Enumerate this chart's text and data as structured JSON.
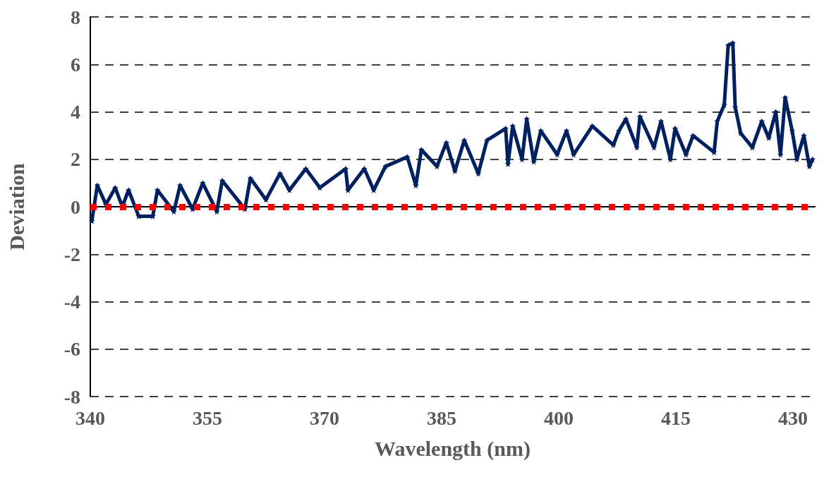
{
  "chart_data": {
    "type": "line",
    "xlabel": "Wavelength (nm)",
    "ylabel": "Deviation",
    "xlim": [
      340,
      432.8
    ],
    "xticks": [
      340,
      355,
      370,
      385,
      400,
      415,
      430
    ],
    "ylim": [
      -8,
      8
    ],
    "yticks": [
      -8,
      -6,
      -4,
      -2,
      0,
      2,
      4,
      6,
      8
    ],
    "grid": "y",
    "marker": "star",
    "line_style": "solid",
    "ref_lines": [
      {
        "axis": "y",
        "value": 0,
        "color": "#ff0000",
        "line_style": "dotted"
      }
    ],
    "series": [
      {
        "color": "#002060",
        "x": [
          340.2,
          340.9,
          342.0,
          343.2,
          344.1,
          344.9,
          346.2,
          348.0,
          348.6,
          350.7,
          351.5,
          353.1,
          354.4,
          356.2,
          356.9,
          359.8,
          360.5,
          362.5,
          364.3,
          365.5,
          367.6,
          369.4,
          372.7,
          373.0,
          375.1,
          376.3,
          377.8,
          380.6,
          381.7,
          382.4,
          384.4,
          385.6,
          386.7,
          387.9,
          389.7,
          390.8,
          393.2,
          393.5,
          394.1,
          395.3,
          395.9,
          396.8,
          397.7,
          399.8,
          401.0,
          401.9,
          404.3,
          407.0,
          407.7,
          408.6,
          410.0,
          410.4,
          412.2,
          413.1,
          414.3,
          414.9,
          416.3,
          417.2,
          419.9,
          420.3,
          421.2,
          421.7,
          422.3,
          422.6,
          423.3,
          424.8,
          426.0,
          426.9,
          427.8,
          428.4,
          429.0,
          429.9,
          430.5,
          431.4,
          432.1,
          432.5
        ],
        "values": [
          -0.6,
          0.9,
          0.1,
          0.8,
          0,
          0.7,
          -0.4,
          -0.4,
          0.7,
          -0.2,
          0.9,
          -0.1,
          1.0,
          -0.2,
          1.1,
          -0.1,
          1.2,
          0.3,
          1.4,
          0.7,
          1.6,
          0.8,
          1.6,
          0.7,
          1.6,
          0.7,
          1.7,
          2.1,
          0.9,
          2.4,
          1.7,
          2.7,
          1.5,
          2.8,
          1.4,
          2.8,
          3.3,
          1.8,
          3.4,
          2.0,
          3.7,
          1.9,
          3.2,
          2.2,
          3.2,
          2.2,
          3.4,
          2.6,
          3.2,
          3.7,
          2.5,
          3.8,
          2.5,
          3.6,
          2.0,
          3.3,
          2.2,
          3.0,
          2.3,
          3.6,
          4.3,
          6.8,
          6.9,
          4.2,
          3.1,
          2.5,
          3.6,
          2.9,
          4.0,
          2.2,
          4.6,
          3.2,
          2.0,
          3.0,
          1.7,
          2.0
        ]
      }
    ]
  }
}
